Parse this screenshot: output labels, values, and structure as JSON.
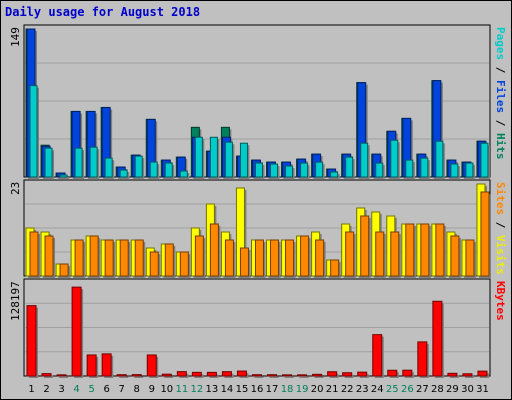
{
  "chart_data": {
    "type": "bar",
    "title": "Daily usage for August 2018",
    "categories": [
      "1",
      "2",
      "3",
      "4",
      "5",
      "6",
      "7",
      "8",
      "9",
      "10",
      "11",
      "12",
      "13",
      "14",
      "15",
      "16",
      "17",
      "18",
      "19",
      "20",
      "21",
      "22",
      "23",
      "24",
      "25",
      "26",
      "27",
      "28",
      "29",
      "30",
      "31"
    ],
    "weekend_days": [
      "4",
      "5",
      "11",
      "12",
      "18",
      "19",
      "25",
      "26"
    ],
    "panels": [
      {
        "name": "top",
        "max_label": "149",
        "max": 149,
        "right_labels": [
          {
            "text": "Pages",
            "color": "#00cccc"
          },
          {
            "text": " / ",
            "color": "#000000"
          },
          {
            "text": "Files",
            "color": "#0044dd"
          },
          {
            "text": " / ",
            "color": "#000000"
          },
          {
            "text": "Hits",
            "color": "#00805c"
          }
        ],
        "series": [
          {
            "name": "Hits",
            "color": "#00805c",
            "values": [
              149,
              32,
              4,
              66,
              66,
              70,
              10,
              22,
              58,
              17,
              20,
              50,
              26,
              50,
              21,
              17,
              15,
              15,
              18,
              23,
              8,
              23,
              95,
              23,
              46,
              59,
              23,
              97,
              17,
              15,
              36
            ]
          },
          {
            "name": "Files",
            "color": "#0044dd",
            "values": [
              149,
              31,
              4,
              66,
              66,
              70,
              10,
              22,
              58,
              17,
              20,
              40,
              26,
              40,
              21,
              17,
              15,
              15,
              18,
              23,
              8,
              23,
              95,
              23,
              46,
              59,
              23,
              97,
              17,
              15,
              36
            ]
          },
          {
            "name": "Pages",
            "color": "#00cccc",
            "values": [
              92,
              29,
              2,
              29,
              30,
              19,
              7,
              21,
              15,
              14,
              6,
              40,
              40,
              35,
              34,
              14,
              13,
              11,
              14,
              15,
              5,
              20,
              34,
              14,
              37,
              17,
              19,
              36,
              13,
              14,
              34
            ]
          }
        ]
      },
      {
        "name": "middle",
        "max_label": "23",
        "max": 23,
        "right_labels": [
          {
            "text": "Sites",
            "color": "#ff8800"
          },
          {
            "text": " / ",
            "color": "#000000"
          },
          {
            "text": "Visits",
            "color": "#eeee00"
          }
        ],
        "series": [
          {
            "name": "Visits",
            "color": "#ffff00",
            "values": [
              12,
              11,
              3,
              9,
              10,
              9,
              9,
              9,
              7,
              8,
              6,
              12,
              18,
              11,
              22,
              9,
              9,
              9,
              10,
              11,
              4,
              13,
              17,
              16,
              15,
              13,
              13,
              13,
              11,
              9,
              23
            ]
          },
          {
            "name": "Sites",
            "color": "#ff8800",
            "values": [
              11,
              10,
              3,
              9,
              10,
              9,
              9,
              9,
              6,
              8,
              6,
              10,
              13,
              9,
              7,
              9,
              9,
              9,
              10,
              9,
              4,
              11,
              15,
              11,
              11,
              13,
              13,
              13,
              10,
              9,
              21
            ]
          }
        ]
      },
      {
        "name": "bottom",
        "max_label": "128197",
        "max": 128197,
        "right_labels": [
          {
            "text": "KBytes",
            "color": "#ff0000"
          }
        ],
        "series": [
          {
            "name": "KBytes",
            "color": "#ff0000",
            "values": [
              97000,
              3300,
              1600,
              122500,
              29000,
              30500,
              1800,
              1900,
              29000,
              2500,
              6000,
              5000,
              5000,
              6000,
              6800,
              1800,
              1800,
              1600,
              1600,
              2300,
              5900,
              4500,
              5300,
              57000,
              7900,
              8000,
              47000,
              103000,
              3700,
              3100,
              6700
            ]
          }
        ]
      }
    ]
  }
}
